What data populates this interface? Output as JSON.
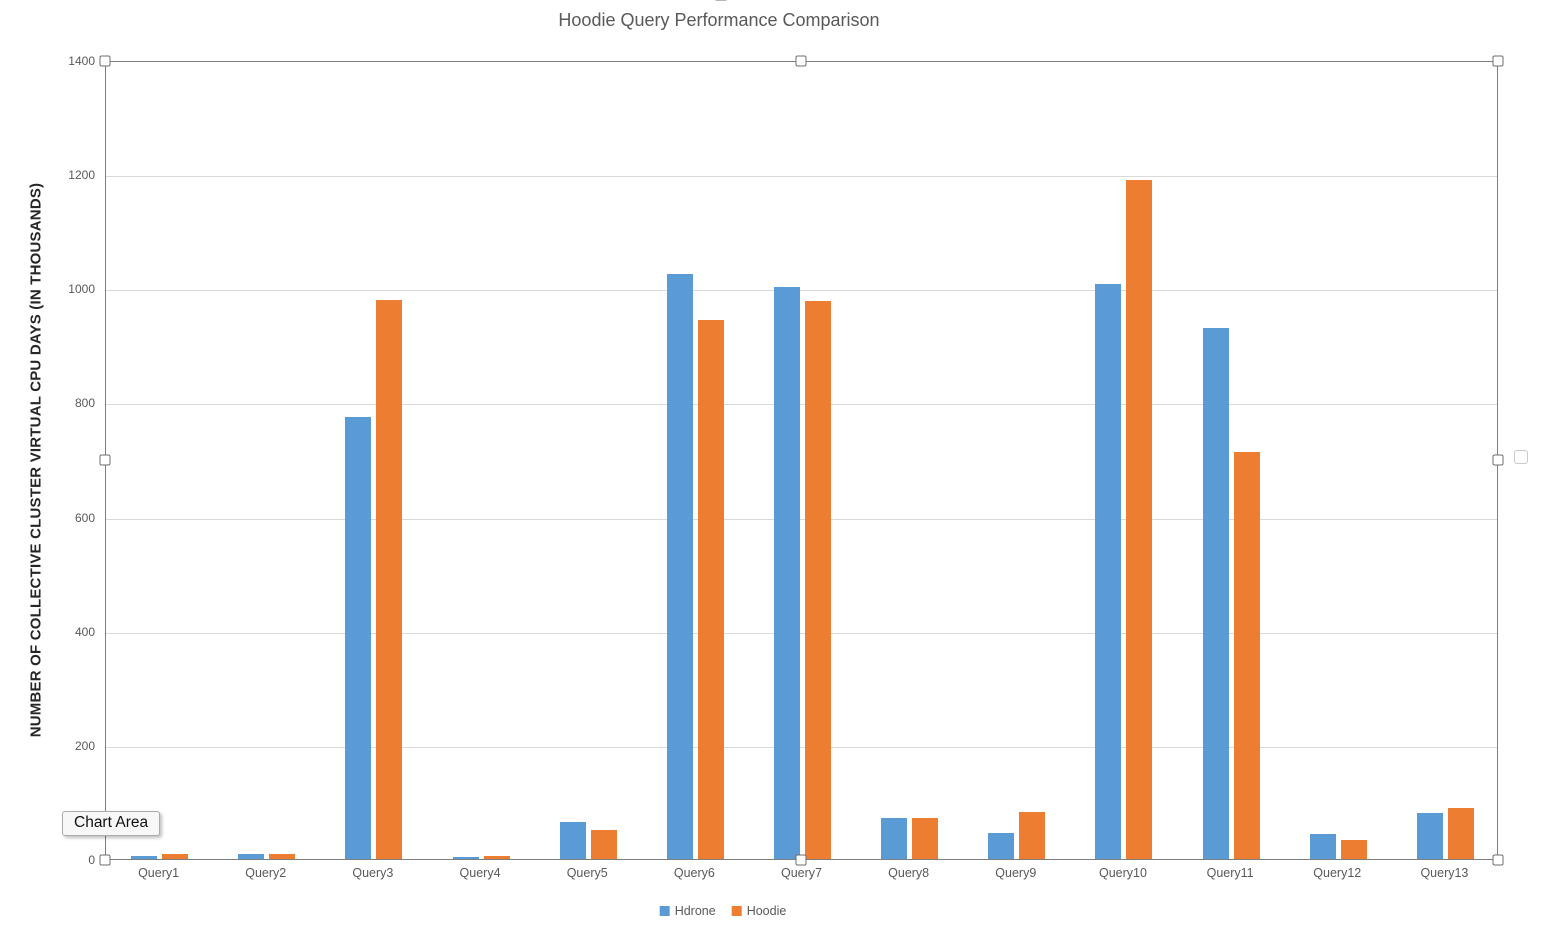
{
  "tooltip": {
    "label": "Chart Area"
  },
  "colors": {
    "series_hdrone": "#5B9BD5",
    "series_hoodie": "#ED7D31",
    "gridline": "#D9D9D9",
    "axis_border": "#7F7F7F",
    "text_gray": "#595959",
    "axis_title_text": "#262626"
  },
  "chart_data": {
    "type": "bar",
    "title": "Hoodie Query Performance Comparison",
    "ylabel": "NUMBER OF COLLECTIVE CLUSTER VIRTUAL CPU DAYS (IN THOUSANDS)",
    "xlabel": "",
    "categories": [
      "Query1",
      "Query2",
      "Query3",
      "Query4",
      "Query5",
      "Query6",
      "Query7",
      "Query8",
      "Query9",
      "Query10",
      "Query11",
      "Query12",
      "Query13"
    ],
    "series": [
      {
        "name": "Hdrone",
        "color": "#5B9BD5",
        "values": [
          5,
          9,
          775,
          4,
          64,
          1025,
          1003,
          71,
          46,
          1007,
          930,
          43,
          81
        ]
      },
      {
        "name": "Hoodie",
        "color": "#ED7D31",
        "values": [
          9,
          8,
          980,
          5,
          51,
          945,
          978,
          72,
          82,
          1190,
          713,
          34,
          90
        ]
      }
    ],
    "ylim": [
      0,
      1400
    ],
    "yticks": [
      0,
      200,
      400,
      600,
      800,
      1000,
      1200,
      1400
    ],
    "grid": true,
    "legend_position": "bottom"
  }
}
